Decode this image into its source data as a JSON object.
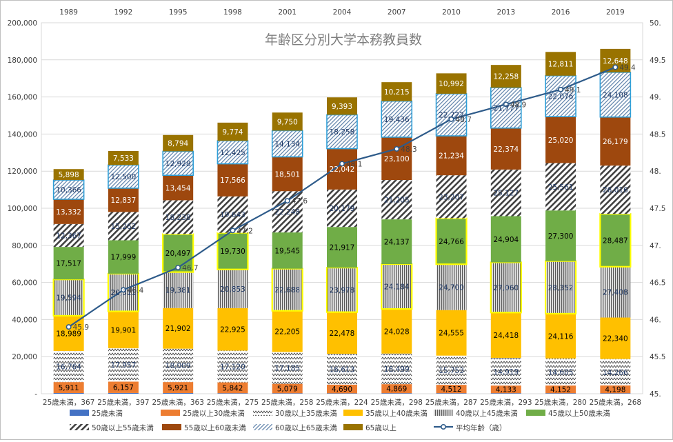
{
  "chart_data": {
    "type": "bar",
    "stacked": true,
    "title": "年齢区分別大学本務教員数",
    "categories": [
      "1989",
      "1992",
      "1995",
      "1998",
      "2001",
      "2004",
      "2007",
      "2010",
      "2013",
      "2016",
      "2019"
    ],
    "category_labels": [
      "25歳未満，367",
      "25歳未満，397",
      "25歳未満，363",
      "25歳未満，275",
      "25歳未満，258",
      "25歳未満，224",
      "25歳未満，298",
      "25歳未満，287",
      "25歳未満，293",
      "25歳未満，280",
      "25歳未満，268"
    ],
    "y_left": {
      "min": 0,
      "max": 200000,
      "step": 20000,
      "ticks": [
        "-",
        "20,000",
        "40,000",
        "60,000",
        "80,000",
        "100,000",
        "120,000",
        "140,000",
        "160,000",
        "180,000",
        "200,000"
      ]
    },
    "y_right": {
      "min": 45,
      "max": 50,
      "step": 0.5,
      "ticks": [
        "45.",
        "45.5",
        "46.",
        "46.5",
        "47.",
        "47.5",
        "48.",
        "48.5",
        "49.",
        "49.5",
        "50."
      ]
    },
    "series": [
      {
        "name": "25歳未満",
        "color": "#4472c4",
        "pattern": "solid",
        "values": [
          367,
          397,
          363,
          275,
          258,
          224,
          298,
          287,
          293,
          280,
          268
        ]
      },
      {
        "name": "25歳以上30歳未満",
        "color": "#ed7d31",
        "pattern": "solid",
        "values": [
          5911,
          6157,
          5921,
          5842,
          5079,
          4690,
          4869,
          4512,
          4133,
          4152,
          4198
        ]
      },
      {
        "name": "30歳以上35歳未満",
        "color": "#404040",
        "pattern": "zigzag",
        "values": [
          16764,
          17957,
          18009,
          17120,
          17185,
          16613,
          16499,
          15753,
          14919,
          14605,
          14266
        ]
      },
      {
        "name": "35歳以上40歳未満",
        "color": "#ffc000",
        "pattern": "solid",
        "values": [
          18989,
          19901,
          21902,
          22925,
          22205,
          22478,
          24028,
          24555,
          24418,
          24116,
          22340
        ]
      },
      {
        "name": "40歳以上45歳未満",
        "color": "#7f7f7f",
        "pattern": "vlines",
        "values": [
          19594,
          20311,
          19381,
          20853,
          22688,
          23978,
          24184,
          24700,
          27060,
          28352,
          27408
        ]
      },
      {
        "name": "45歳以上50歳未満",
        "color": "#70ad47",
        "pattern": "solid",
        "values": [
          17517,
          17999,
          20497,
          19730,
          19545,
          21917,
          24137,
          24766,
          24904,
          27300,
          28487
        ]
      },
      {
        "name": "50歳以上55歳未満",
        "color": "#404040",
        "pattern": "diag",
        "values": [
          12367,
          15262,
          18238,
          19643,
          22248,
          20179,
          21205,
          23207,
          25127,
          25561,
          26016
        ]
      },
      {
        "name": "55歳以上60歳未満",
        "color": "#9e480e",
        "pattern": "solid",
        "values": [
          13332,
          12837,
          13454,
          17566,
          18501,
          22042,
          23100,
          21234,
          22374,
          25020,
          26179
        ]
      },
      {
        "name": "60歳以上65歳未満",
        "color": "#4bacc6",
        "pattern": "hatch",
        "values": [
          10366,
          12500,
          12928,
          12425,
          14134,
          18258,
          19436,
          22722,
          21777,
          22076,
          24108
        ]
      },
      {
        "name": "65歳以上",
        "color": "#997300",
        "pattern": "solid",
        "values": [
          5898,
          7533,
          8794,
          9774,
          9750,
          9393,
          10215,
          10992,
          12258,
          12811,
          12648
        ]
      }
    ],
    "line": {
      "name": "平均年齢（歳）",
      "color": "#2e5b8a",
      "axis": "right",
      "values": [
        45.9,
        46.4,
        46.7,
        47.2,
        47.6,
        48.1,
        48.3,
        48.7,
        48.9,
        49.1,
        49.4
      ],
      "labels": [
        "45.9",
        "46.4",
        "46.7",
        "47.2",
        "47.6",
        "48.1",
        "48.3",
        "48.7",
        "48.9",
        "49.1",
        "49.4"
      ]
    },
    "highlighted": [
      {
        "series": "40歳以上45歳未満",
        "category": "1989"
      },
      {
        "series": "40歳以上45歳未満",
        "category": "1992"
      },
      {
        "series": "45歳以上50歳未満",
        "category": "1995"
      },
      {
        "series": "45歳以上50歳未満",
        "category": "1998"
      },
      {
        "series": "40歳以上45歳未満",
        "category": "2001"
      },
      {
        "series": "40歳以上45歳未満",
        "category": "2004"
      },
      {
        "series": "40歳以上45歳未満",
        "category": "2007"
      },
      {
        "series": "45歳以上50歳未満",
        "category": "2010"
      },
      {
        "series": "40歳以上45歳未満",
        "category": "2013"
      },
      {
        "series": "40歳以上45歳未満",
        "category": "2016"
      },
      {
        "series": "45歳以上50歳未満",
        "category": "2019"
      },
      {
        "series": "60歳以上65歳未満",
        "category": "1989"
      },
      {
        "series": "60歳以上65歳未満",
        "category": "1992"
      },
      {
        "series": "60歳以上65歳未満",
        "category": "1995"
      },
      {
        "series": "60歳以上65歳未満",
        "category": "1998"
      },
      {
        "series": "60歳以上65歳未満",
        "category": "2001"
      },
      {
        "series": "60歳以上65歳未満",
        "category": "2004"
      },
      {
        "series": "60歳以上65歳未満",
        "category": "2007"
      },
      {
        "series": "60歳以上65歳未満",
        "category": "2010"
      },
      {
        "series": "60歳以上65歳未満",
        "category": "2013"
      },
      {
        "series": "60歳以上65歳未満",
        "category": "2016"
      },
      {
        "series": "60歳以上65歳未満",
        "category": "2019"
      }
    ],
    "legend_position": "bottom",
    "grid": true
  }
}
